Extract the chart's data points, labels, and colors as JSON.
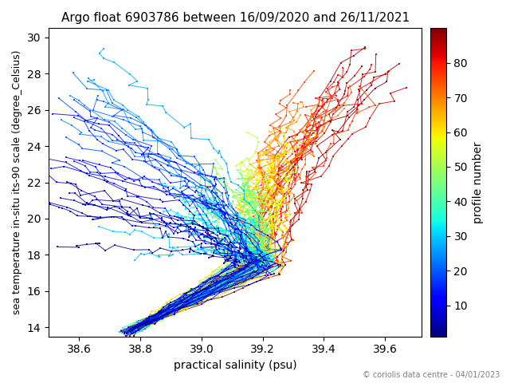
{
  "title": "Argo float 6903786 between 16/09/2020 and 26/11/2021",
  "xlabel": "practical salinity (psu)",
  "ylabel": "sea temperature in-situ its-90 scale (degree_Celsius)",
  "cbar_label": "profile number",
  "copyright": "© coriolis data centre - 04/01/2023",
  "xlim": [
    38.5,
    39.72
  ],
  "ylim": [
    13.5,
    30.5
  ],
  "xticks": [
    38.6,
    38.8,
    39.0,
    39.2,
    39.4,
    39.6
  ],
  "yticks": [
    14,
    16,
    18,
    20,
    22,
    24,
    26,
    28,
    30
  ],
  "cbar_ticks": [
    10,
    20,
    30,
    40,
    50,
    60,
    70,
    80
  ],
  "n_profiles": 90,
  "colormap": "jet",
  "figsize": [
    6.4,
    4.8
  ],
  "dpi": 100,
  "background_color": "white",
  "seed": 12
}
